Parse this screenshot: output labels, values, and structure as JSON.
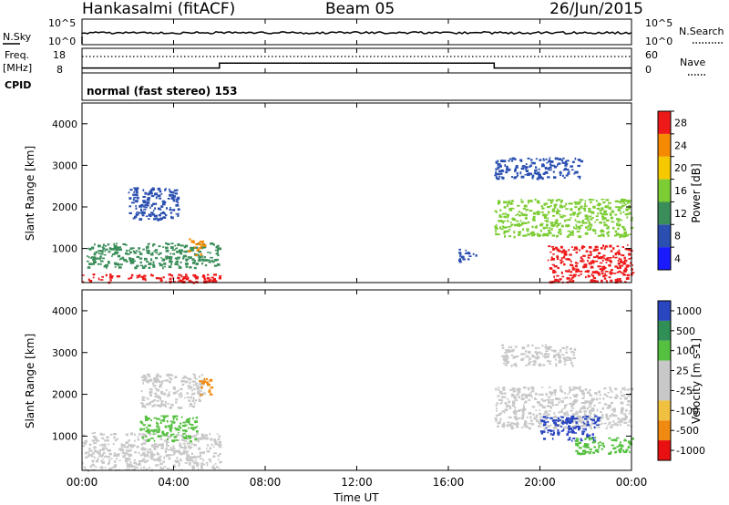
{
  "header": {
    "station": "Hankasalmi (fitACF)",
    "beam": "Beam 05",
    "date": "26/Jun/2015"
  },
  "noise_panel": {
    "left_label": "N.Sky",
    "right_label": "N.Search",
    "left_ticks": [
      "10^5",
      "10^0"
    ],
    "right_ticks": [
      "10^5",
      "10^0"
    ]
  },
  "freq_panel": {
    "left_label_1": "Freq.",
    "left_label_2": "[MHz]",
    "right_label": "Nave",
    "left_ticks": [
      "18",
      "8"
    ],
    "right_ticks": [
      "60",
      "0"
    ]
  },
  "cpid": {
    "label": "CPID",
    "mode": "normal (fast stereo) 153"
  },
  "time_axis": {
    "title": "Time UT",
    "ticks": [
      "00:00",
      "04:00",
      "08:00",
      "12:00",
      "16:00",
      "20:00",
      "00:00"
    ]
  },
  "range_axis": {
    "title": "Slant Range [km]",
    "ticks": [
      "1000",
      "2000",
      "3000",
      "4000"
    ]
  },
  "power_colorbar": {
    "title": "Power [dB]",
    "labels": [
      "4",
      "8",
      "12",
      "16",
      "20",
      "24",
      "28"
    ],
    "colors": [
      "#1a1aff",
      "#2a4fb0",
      "#3b8e5a",
      "#7ccc33",
      "#f5c800",
      "#f58a00",
      "#ee1a1a"
    ]
  },
  "velocity_colorbar": {
    "title": "Velocity [m s-1]",
    "labels": [
      "1000",
      "500",
      "100",
      "25",
      "-25",
      "-100",
      "-500",
      "-1000"
    ],
    "colors": [
      "#2a45c0",
      "#2f8f55",
      "#55c040",
      "#c8c8c8",
      "#c8c8c8",
      "#f0c040",
      "#f08a10",
      "#e81010"
    ]
  },
  "chart_data": {
    "type": "heatmap",
    "title": "Hankasalmi (fitACF) Beam 05 26/Jun/2015",
    "xlabel": "Time UT",
    "ylabel": "Slant Range [km]",
    "x_range_hours": [
      0,
      24
    ],
    "y_range_km": [
      180,
      4500
    ],
    "noise_levels": {
      "sky": "~10^2",
      "search": "~10^2"
    },
    "frequency_mhz": [
      {
        "start_hour": 0,
        "end_hour": 6,
        "value": 10
      },
      {
        "start_hour": 6,
        "end_hour": 18,
        "value": 12
      },
      {
        "start_hour": 18,
        "end_hour": 24,
        "value": 10
      }
    ],
    "nave_dotted_level": 40,
    "power_regions": [
      {
        "t0": 0.0,
        "t1": 6.0,
        "r0": 200,
        "r1": 400,
        "dB": 28
      },
      {
        "t0": 0.2,
        "t1": 6.0,
        "r0": 550,
        "r1": 1150,
        "dB": 12
      },
      {
        "t0": 2.0,
        "t1": 4.2,
        "r0": 1700,
        "r1": 2500,
        "dB": 8
      },
      {
        "t0": 4.6,
        "t1": 5.3,
        "r0": 850,
        "r1": 1250,
        "dB": 24
      },
      {
        "t0": 16.4,
        "t1": 17.2,
        "r0": 700,
        "r1": 1000,
        "dB": 8
      },
      {
        "t0": 18.0,
        "t1": 24.0,
        "r0": 1300,
        "r1": 2200,
        "dB": 16
      },
      {
        "t0": 18.0,
        "t1": 21.8,
        "r0": 2700,
        "r1": 3200,
        "dB": 8
      },
      {
        "t0": 20.3,
        "t1": 24.0,
        "r0": 200,
        "r1": 1100,
        "dB": 28
      }
    ],
    "velocity_regions": [
      {
        "t0": 0.0,
        "t1": 6.0,
        "r0": 200,
        "r1": 1100,
        "v": 0
      },
      {
        "t0": 2.5,
        "t1": 5.0,
        "r0": 900,
        "r1": 1500,
        "v": 100
      },
      {
        "t0": 2.5,
        "t1": 5.3,
        "r0": 1700,
        "r1": 2500,
        "v": 0
      },
      {
        "t0": 5.1,
        "t1": 5.6,
        "r0": 2000,
        "r1": 2400,
        "v": -100
      },
      {
        "t0": 18.0,
        "t1": 24.0,
        "r0": 1200,
        "r1": 2200,
        "v": 0
      },
      {
        "t0": 20.0,
        "t1": 22.5,
        "r0": 900,
        "r1": 1500,
        "v": 500
      },
      {
        "t0": 21.5,
        "t1": 24.0,
        "r0": 600,
        "r1": 1000,
        "v": 100
      },
      {
        "t0": 18.3,
        "t1": 21.5,
        "r0": 2700,
        "r1": 3200,
        "v": 0
      }
    ]
  }
}
